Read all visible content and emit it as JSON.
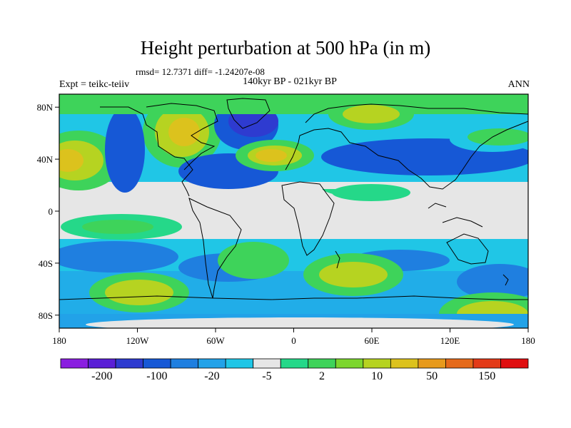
{
  "figure": {
    "title": "Height perturbation at 500 hPa (in m)",
    "stats_line": "rmsd= 12.7371 diff= -1.24207e-08",
    "left_label": "Expt = teikc-teiiv",
    "center_label": "140kyr BP - 021kyr BP",
    "right_label": "ANN"
  },
  "map": {
    "lon_range": [
      -180,
      180
    ],
    "lat_range": [
      -90,
      90
    ],
    "x_ticks": [
      "180",
      "120W",
      "60W",
      "0",
      "60E",
      "120E",
      "180"
    ],
    "y_ticks": [
      "80N",
      "40N",
      "0",
      "40S",
      "80S"
    ],
    "background_color": "#e6e6e6"
  },
  "colorbar": {
    "colors": [
      "#8a1ee0",
      "#5a1fd6",
      "#2e3bd0",
      "#1658d6",
      "#1f7fe0",
      "#22a2e8",
      "#20c6e6",
      "#e6e6e6",
      "#25d889",
      "#3ed35a",
      "#7cd62e",
      "#b6d321",
      "#dcc21d",
      "#e79a1c",
      "#e56a1a",
      "#e33a18",
      "#e00e10"
    ],
    "labels": [
      "-200",
      "-100",
      "-20",
      "-5",
      "2",
      "10",
      "50",
      "150"
    ]
  }
}
